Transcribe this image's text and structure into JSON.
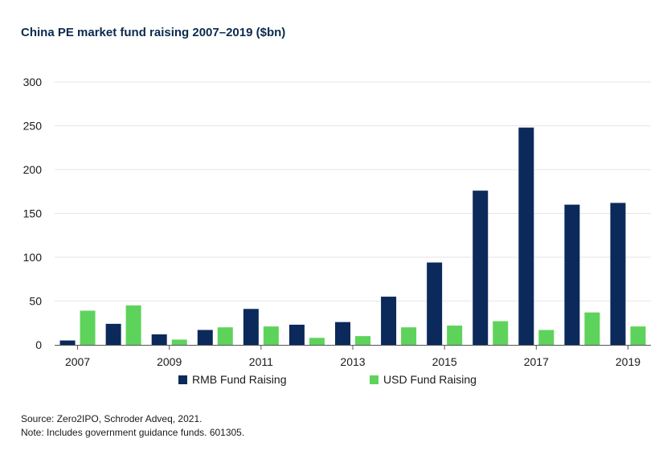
{
  "title": "China PE market fund raising 2007–2019 ($bn)",
  "footer": {
    "source": "Source: Zero2IPO, Schroder Adveq, 2021.",
    "note": "Note: Includes government guidance funds. 601305."
  },
  "colors": {
    "rmb": "#0b2a5b",
    "usd": "#5ed35b",
    "grid": "#e6e6e6",
    "axis": "#555555"
  },
  "chart_data": {
    "type": "bar",
    "title": "China PE market fund raising 2007–2019 ($bn)",
    "xlabel": "",
    "ylabel": "",
    "ylim": [
      0,
      300
    ],
    "yticks": [
      0,
      50,
      100,
      150,
      200,
      250,
      300
    ],
    "categories": [
      "2007",
      "2008",
      "2009",
      "2010",
      "2011",
      "2012",
      "2013",
      "2014",
      "2015",
      "2016",
      "2017",
      "2018",
      "2019"
    ],
    "xtick_labels": [
      "2007",
      "",
      "2009",
      "",
      "2011",
      "",
      "2013",
      "",
      "2015",
      "",
      "2017",
      "",
      "2019"
    ],
    "series": [
      {
        "name": "RMB Fund Raising",
        "color": "#0b2a5b",
        "values": [
          5,
          24,
          12,
          17,
          41,
          23,
          26,
          55,
          94,
          176,
          248,
          160,
          162
        ]
      },
      {
        "name": "USD Fund Raising",
        "color": "#5ed35b",
        "values": [
          39,
          45,
          6,
          20,
          21,
          8,
          10,
          20,
          22,
          27,
          17,
          37,
          21
        ]
      }
    ],
    "grid": true,
    "legend_position": "bottom"
  }
}
